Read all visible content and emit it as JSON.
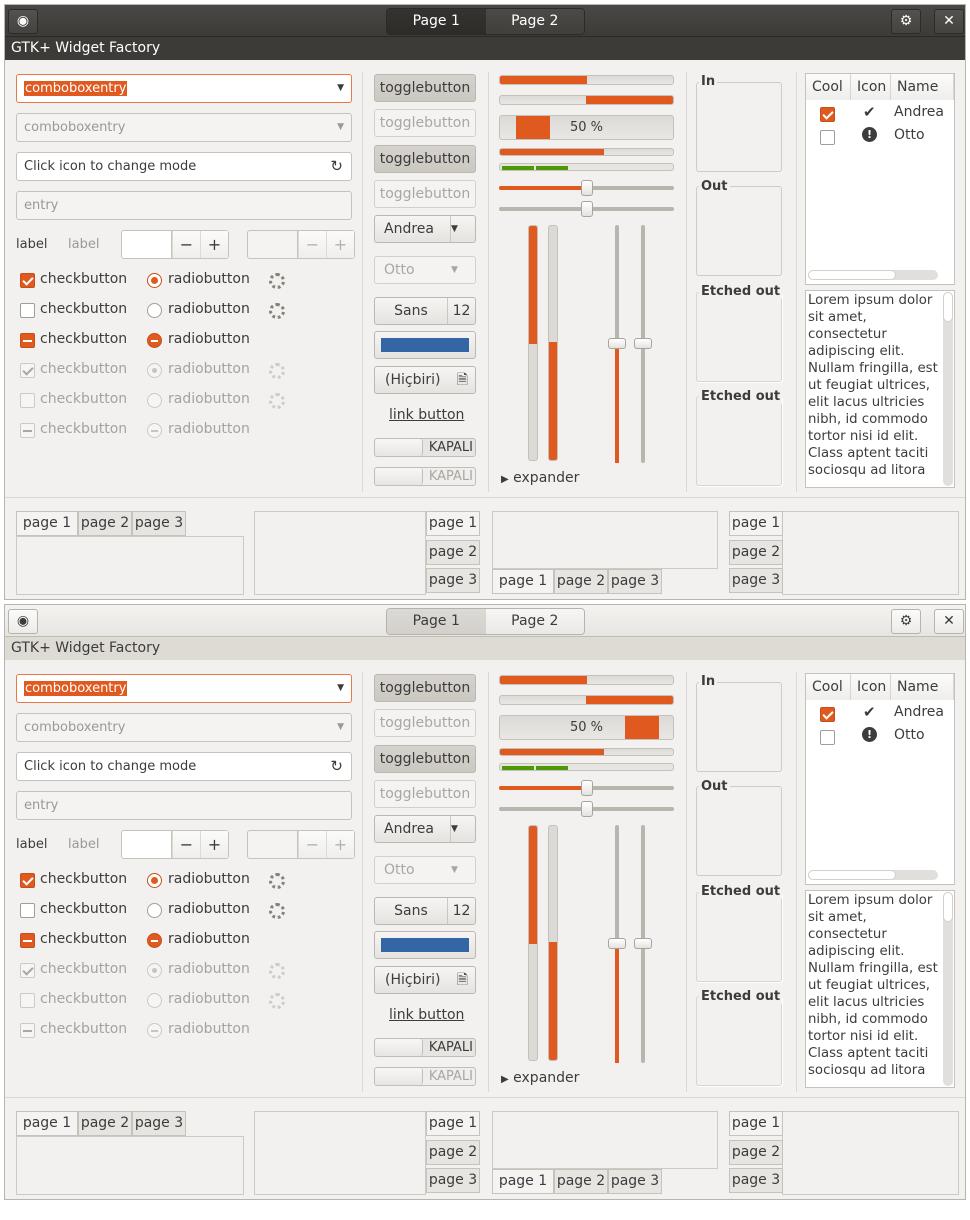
{
  "header": {
    "pages": [
      "Page 1",
      "Page 2"
    ],
    "title": "GTK+ Widget Factory"
  },
  "combo": {
    "entry1": "comboboxentry",
    "entry2": "comboboxentry",
    "icon_entry_placeholder": "Click icon to change mode",
    "entry_placeholder": "entry"
  },
  "labels": {
    "label": "label",
    "label_dis": "label"
  },
  "checks": [
    "checkbutton",
    "checkbutton",
    "checkbutton",
    "checkbutton",
    "checkbutton",
    "checkbutton"
  ],
  "radios": [
    "radiobutton",
    "radiobutton",
    "radiobutton",
    "radiobutton",
    "radiobutton",
    "radiobutton"
  ],
  "buttons": {
    "toggle": [
      "togglebutton",
      "togglebutton",
      "togglebutton",
      "togglebutton"
    ],
    "combo1": "Andrea",
    "combo2": "Otto",
    "font_name": "Sans",
    "font_size": "12",
    "file": "(Hiçbiri)",
    "link": "link button",
    "switch_off": "KAPALI"
  },
  "progress": {
    "text": "50 %",
    "w1_fraction": 0.5,
    "w2_fraction": 0.5
  },
  "frames": [
    "In",
    "Out",
    "Etched out",
    "Etched out"
  ],
  "tree": {
    "headers": [
      "Cool",
      "Icon",
      "Name"
    ],
    "rows": [
      {
        "cool": true,
        "icon": "check-icon",
        "name": "Andrea"
      },
      {
        "cool": false,
        "icon": "warning-icon",
        "name": "Otto"
      }
    ]
  },
  "textview": "Lorem ipsum dolor sit amet, consectetur adipiscing elit. Nullam fringilla, est ut feugiat ultrices, elit lacus ultricies nibh, id commodo tortor nisi id elit. Class aptent taciti sociosqu ad litora",
  "expander": "expander",
  "notebook": {
    "tabs": [
      "page 1",
      "page 2",
      "page 3"
    ]
  }
}
